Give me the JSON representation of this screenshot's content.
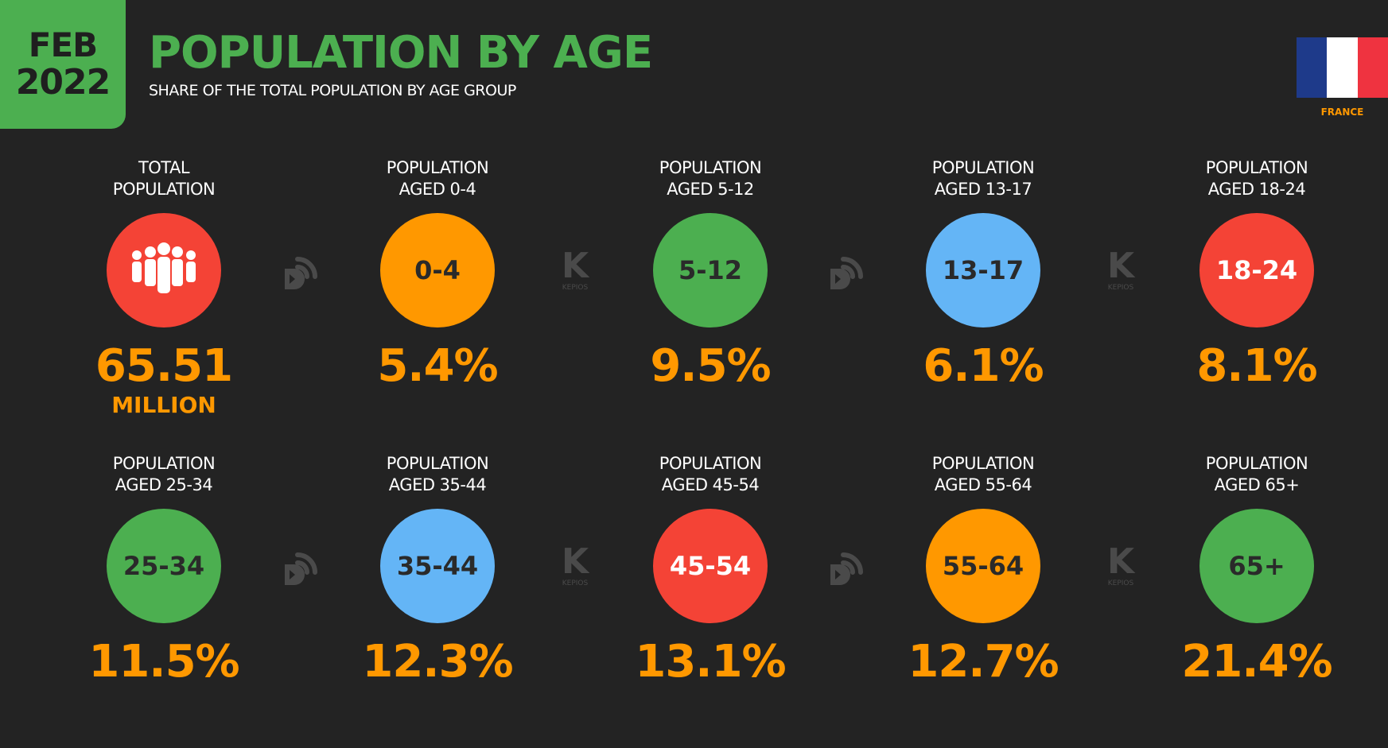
{
  "header": {
    "month": "FEB",
    "year": "2022",
    "title": "POPULATION BY AGE",
    "subtitle": "SHARE OF THE TOTAL POPULATION BY AGE GROUP",
    "country": "FRANCE"
  },
  "colors": {
    "green": "#4caf50",
    "orange": "#ff9800",
    "blue": "#64b5f6",
    "red": "#f44336",
    "background": "#232323",
    "flag_blue": "#1e3a8a",
    "flag_white": "#ffffff",
    "flag_red": "#ef3340"
  },
  "separator_brand": "KEPIOS",
  "chart_data": {
    "type": "table",
    "title": "POPULATION BY AGE",
    "subtitle": "SHARE OF THE TOTAL POPULATION BY AGE GROUP",
    "total_population": {
      "label": "TOTAL\nPOPULATION",
      "value": "65.51",
      "unit": "MILLION",
      "icon": "people-group-icon",
      "color": "#f44336"
    },
    "age_groups": [
      {
        "label": "POPULATION\nAGED 0-4",
        "badge": "0-4",
        "share": "5.4%",
        "value": 5.4,
        "color": "#ff9800"
      },
      {
        "label": "POPULATION\nAGED 5-12",
        "badge": "5-12",
        "share": "9.5%",
        "value": 9.5,
        "color": "#4caf50"
      },
      {
        "label": "POPULATION\nAGED 13-17",
        "badge": "13-17",
        "share": "6.1%",
        "value": 6.1,
        "color": "#64b5f6"
      },
      {
        "label": "POPULATION\nAGED 18-24",
        "badge": "18-24",
        "share": "8.1%",
        "value": 8.1,
        "color": "#f44336"
      },
      {
        "label": "POPULATION\nAGED 25-34",
        "badge": "25-34",
        "share": "11.5%",
        "value": 11.5,
        "color": "#4caf50"
      },
      {
        "label": "POPULATION\nAGED 35-44",
        "badge": "35-44",
        "share": "12.3%",
        "value": 12.3,
        "color": "#64b5f6"
      },
      {
        "label": "POPULATION\nAGED 45-54",
        "badge": "45-54",
        "share": "13.1%",
        "value": 13.1,
        "color": "#f44336"
      },
      {
        "label": "POPULATION\nAGED 55-64",
        "badge": "55-64",
        "share": "12.7%",
        "value": 12.7,
        "color": "#ff9800"
      },
      {
        "label": "POPULATION\nAGED 65+",
        "badge": "65+",
        "share": "21.4%",
        "value": 21.4,
        "color": "#4caf50"
      }
    ]
  }
}
